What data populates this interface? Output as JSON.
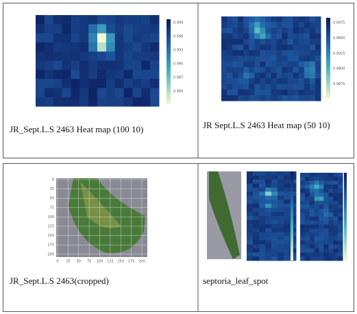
{
  "panels": [
    {
      "caption": "JR_Sept.L.S 2463 Heat map (100 10)",
      "colorbar_ticks": [
        "0.999",
        "0.996",
        "0.993",
        "0.990",
        "0.987",
        "0.984"
      ]
    },
    {
      "caption": "JR Sept.L.S 2463 Heat map (50 10)",
      "colorbar_ticks": [
        "0.9975",
        "0.9950",
        "0.9925",
        "0.9900",
        "0.9875"
      ]
    },
    {
      "caption": "JR_Sept.L.S 2463(cropped)",
      "y_ticks": [
        "0",
        "25",
        "50",
        "75",
        "100",
        "125",
        "150",
        "175",
        "200"
      ],
      "x_ticks": [
        "0",
        "25",
        "50",
        "75",
        "100",
        "125",
        "150",
        "175",
        "200"
      ]
    },
    {
      "caption": "septoria_leaf_spot"
    }
  ]
}
